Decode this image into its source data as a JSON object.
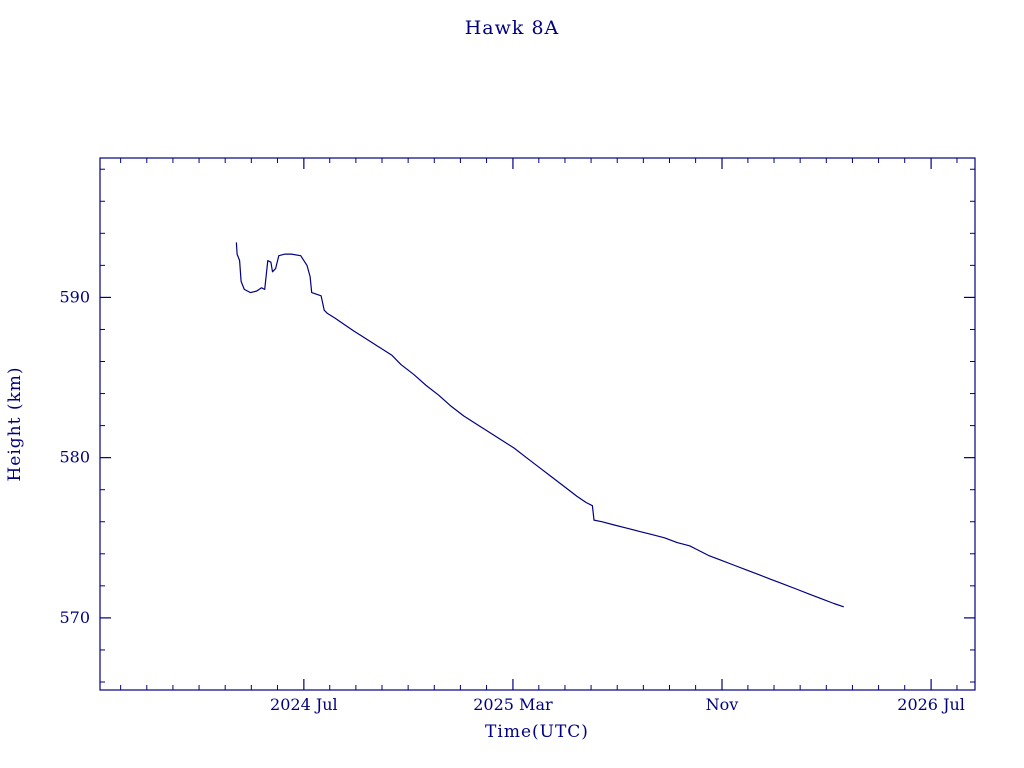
{
  "title": "Hawk 8A",
  "colors": {
    "line": "#000080",
    "axis": "#000080",
    "text": "#000080",
    "background": "#ffffff"
  },
  "chart_data": {
    "type": "line",
    "title": "Hawk 8A",
    "xlabel": "Time(UTC)",
    "ylabel": "Height (km)",
    "xlim": [
      2023.85,
      2026.64
    ],
    "ylim": [
      565.5,
      598.7
    ],
    "grid": false,
    "legend": "none",
    "x_ticks": [
      {
        "value": 2024.5,
        "label": "2024 Jul"
      },
      {
        "value": 2025.1667,
        "label": "2025 Mar"
      },
      {
        "value": 2025.8333,
        "label": "Nov"
      },
      {
        "value": 2026.5,
        "label": "2026 Jul"
      }
    ],
    "y_ticks": [
      {
        "value": 570,
        "label": "570"
      },
      {
        "value": 580,
        "label": "580"
      },
      {
        "value": 590,
        "label": "590"
      }
    ],
    "x_minor_step_years": 0.0833333,
    "y_minor_step": 2,
    "series": [
      {
        "name": "height",
        "points": [
          [
            2024.285,
            593.4
          ],
          [
            2024.287,
            592.7
          ],
          [
            2024.295,
            592.3
          ],
          [
            2024.3,
            591.0
          ],
          [
            2024.31,
            590.5
          ],
          [
            2024.33,
            590.3
          ],
          [
            2024.35,
            590.4
          ],
          [
            2024.365,
            590.6
          ],
          [
            2024.375,
            590.5
          ],
          [
            2024.385,
            592.3
          ],
          [
            2024.395,
            592.2
          ],
          [
            2024.4,
            591.6
          ],
          [
            2024.41,
            591.8
          ],
          [
            2024.42,
            592.6
          ],
          [
            2024.44,
            592.7
          ],
          [
            2024.46,
            592.7
          ],
          [
            2024.49,
            592.6
          ],
          [
            2024.51,
            592.0
          ],
          [
            2024.52,
            591.3
          ],
          [
            2024.525,
            590.3
          ],
          [
            2024.54,
            590.2
          ],
          [
            2024.555,
            590.1
          ],
          [
            2024.565,
            589.2
          ],
          [
            2024.575,
            589.0
          ],
          [
            2024.6,
            588.7
          ],
          [
            2024.63,
            588.3
          ],
          [
            2024.66,
            587.9
          ],
          [
            2024.7,
            587.4
          ],
          [
            2024.74,
            586.9
          ],
          [
            2024.78,
            586.4
          ],
          [
            2024.81,
            585.8
          ],
          [
            2024.85,
            585.2
          ],
          [
            2024.89,
            584.5
          ],
          [
            2024.93,
            583.9
          ],
          [
            2024.97,
            583.2
          ],
          [
            2025.01,
            582.6
          ],
          [
            2025.05,
            582.1
          ],
          [
            2025.09,
            581.6
          ],
          [
            2025.13,
            581.1
          ],
          [
            2025.17,
            580.6
          ],
          [
            2025.21,
            580.0
          ],
          [
            2025.25,
            579.4
          ],
          [
            2025.29,
            578.8
          ],
          [
            2025.33,
            578.2
          ],
          [
            2025.37,
            577.6
          ],
          [
            2025.4,
            577.2
          ],
          [
            2025.42,
            577.0
          ],
          [
            2025.425,
            576.1
          ],
          [
            2025.45,
            576.0
          ],
          [
            2025.49,
            575.8
          ],
          [
            2025.53,
            575.6
          ],
          [
            2025.57,
            575.4
          ],
          [
            2025.61,
            575.2
          ],
          [
            2025.65,
            575.0
          ],
          [
            2025.69,
            574.7
          ],
          [
            2025.73,
            574.5
          ],
          [
            2025.75,
            574.3
          ],
          [
            2025.79,
            573.9
          ],
          [
            2025.83,
            573.6
          ],
          [
            2025.87,
            573.3
          ],
          [
            2025.91,
            573.0
          ],
          [
            2025.95,
            572.7
          ],
          [
            2025.99,
            572.4
          ],
          [
            2026.03,
            572.1
          ],
          [
            2026.07,
            571.8
          ],
          [
            2026.11,
            571.5
          ],
          [
            2026.15,
            571.2
          ],
          [
            2026.19,
            570.9
          ],
          [
            2026.22,
            570.7
          ]
        ]
      }
    ]
  }
}
